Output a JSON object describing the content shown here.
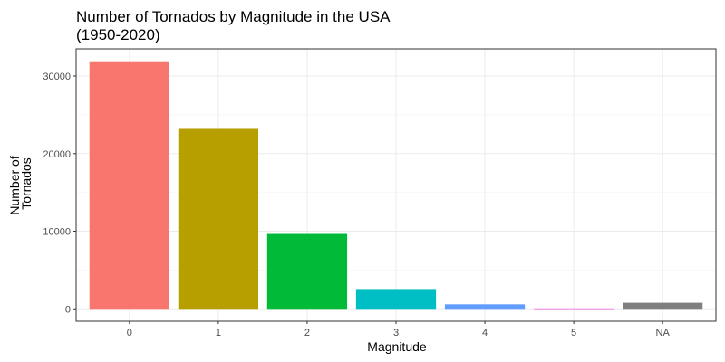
{
  "chart_data": {
    "type": "bar",
    "title": [
      "Number of Tornados by Magnitude in the USA",
      "(1950-2020)"
    ],
    "xlabel": "Magnitude",
    "ylabel": [
      "Number of",
      "Tornados"
    ],
    "categories": [
      "0",
      "1",
      "2",
      "3",
      "4",
      "5",
      "NA"
    ],
    "values": [
      31900,
      23300,
      9650,
      2550,
      580,
      59,
      780
    ],
    "colors": [
      "#F8766D",
      "#B79F00",
      "#00BA38",
      "#00BFC4",
      "#619CFF",
      "#F564E3",
      "#7F7F7F"
    ],
    "ylim": [
      -1600,
      33500
    ],
    "yticks": [
      0,
      10000,
      20000,
      30000
    ],
    "ytick_labels": [
      "0",
      "10000",
      "20000",
      "30000"
    ],
    "grid": true,
    "legend": "none"
  }
}
